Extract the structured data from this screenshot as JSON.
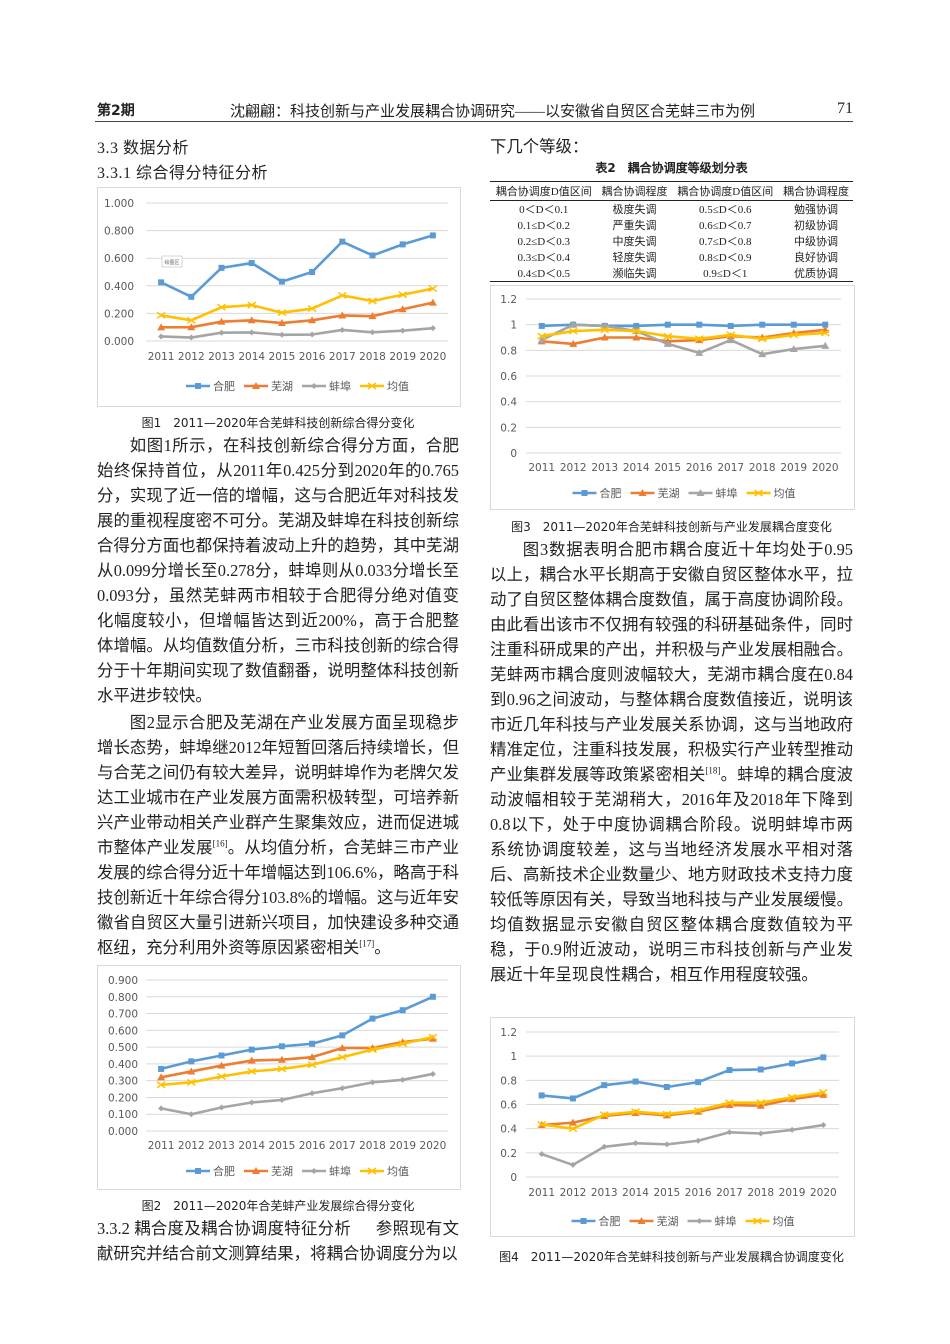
{
  "header": {
    "issue": "第2期",
    "title": "沈翩翩：科技创新与产业发展耦合协调研究——以安徽省自贸区合芜蚌三市为例",
    "page_number": "71"
  },
  "left": {
    "section_33": "3.3 数据分析",
    "section_331": "3.3.1 综合得分特征分析",
    "fig1_caption": "图1　2011—2020年合芜蚌科技创新综合得分变化",
    "para1": "如图1所示，在科技创新综合得分方面，合肥始终保持首位，从2011年0.425分到2020年的0.765分，实现了近一倍的增幅，这与合肥近年对科技发展的重视程度密不可分。芜湖及蚌埠在科技创新综合得分方面也都保持着波动上升的趋势，其中芜湖从0.099分增长至0.278分，蚌埠则从0.033分增长至0.093分，虽然芜蚌两市相较于合肥得分绝对值变化幅度较小，但增幅皆达到近200%，高于合肥整体增幅。从均值数值分析，三市科技创新的综合得分于十年期间实现了数值翻番，说明整体科技创新水平进步较快。",
    "para2": "图2显示合肥及芜湖在产业发展方面呈现稳步增长态势，蚌埠继2012年短暂回落后持续增长，但与合芜之间仍有较大差异，说明蚌埠作为老牌欠发达工业城市在产业发展方面需积极转型，可培养新兴产业带动相关产业群产生聚集效应，进而促进城市整体产业发展",
    "para2_ref1": "[16]",
    "para2_b": "。从均值分析，合芜蚌三市产业发展的综合得分近十年增幅达到106.6%，略高于科技创新近十年综合得分103.8%的增幅。这与近年安徽省自贸区大量引进新兴项目，加快建设多种交通枢纽，充分利用外资等原因紧密相关",
    "para2_ref2": "[17]",
    "para2_end": "。",
    "fig2_caption": "图2　2011—2020年合芜蚌产业发展综合得分变化",
    "section_332": "3.3.2 耦合度及耦合协调度特征分析",
    "para3": "参照现有文献研究并结合前文测算结果，将耦合协调度分为以"
  },
  "right": {
    "para3_cont": "下几个等级：",
    "table2": {
      "title": "表2　耦合协调度等级划分表",
      "headers": [
        "耦合协调度D值区间",
        "耦合协调程度",
        "耦合协调度D值区间",
        "耦合协调程度"
      ],
      "rows": [
        [
          "0＜D＜0.1",
          "极度失调",
          "0.5≤D＜0.6",
          "勉强协调"
        ],
        [
          "0.1≤D＜0.2",
          "严重失调",
          "0.6≤D＜0.7",
          "初级协调"
        ],
        [
          "0.2≤D＜0.3",
          "中度失调",
          "0.7≤D＜0.8",
          "中级协调"
        ],
        [
          "0.3≤D＜0.4",
          "轻度失调",
          "0.8≤D＜0.9",
          "良好协调"
        ],
        [
          "0.4≤D＜0.5",
          "濒临失调",
          "0.9≤D＜1",
          "优质协调"
        ]
      ]
    },
    "fig3_caption": "图3　2011—2020年合芜蚌科技创新与产业发展耦合度变化",
    "para4": "图3数据表明合肥市耦合度近十年均处于0.95以上，耦合水平长期高于安徽自贸区整体水平，拉动了自贸区整体耦合度数值，属于高度协调阶段。由此看出该市不仅拥有较强的科研基础条件，同时注重科研成果的产出，并积极与产业发展相融合。芜蚌两市耦合度则波幅较大，芜湖市耦合度在0.84到0.96之间波动，与整体耦合度数值接近，说明该市近几年科技与产业发展关系协调，这与当地政府精准定位，注重科技发展，积极实行产业转型推动产业集群发展等政策紧密相关",
    "para4_ref": "[18]",
    "para4_b": "。蚌埠的耦合度波动波幅相较于芜湖稍大，2016年及2018年下降到0.8以下，处于中度协调耦合阶段。说明蚌埠市两系统协调度较差，这与当地经济发展水平相对落后、高新技术企业数量少、地方财政技术支持力度较低等原因有关，导致当地科技与产业发展缓慢。均值数据显示安徽自贸区整体耦合度数值较为平稳，于0.9附近波动，说明三市科技创新与产业发展近十年呈现良性耦合，相互作用程度较强。",
    "fig4_caption": "图4　2011—2020年合芜蚌科技创新与产业发展耦合协调度变化"
  },
  "chart_data": [
    {
      "id": "fig1",
      "type": "line",
      "title": "",
      "plot_area_label": "绘图区",
      "categories": [
        "2011",
        "2012",
        "2013",
        "2014",
        "2015",
        "2016",
        "2017",
        "2018",
        "2019",
        "2020"
      ],
      "ylim": [
        0,
        1.0
      ],
      "yticks": [
        "0.000",
        "0.200",
        "0.400",
        "0.600",
        "0.800",
        "1.000"
      ],
      "ystep": 0.2,
      "grid": true,
      "legend": "bottom",
      "series": [
        {
          "name": "合肥",
          "color": "#5b9bd5",
          "marker": "square",
          "values": [
            0.425,
            0.32,
            0.53,
            0.565,
            0.43,
            0.5,
            0.72,
            0.62,
            0.7,
            0.765
          ]
        },
        {
          "name": "芜湖",
          "color": "#ed7d31",
          "marker": "triangle",
          "values": [
            0.099,
            0.1,
            0.14,
            0.15,
            0.13,
            0.15,
            0.185,
            0.18,
            0.23,
            0.278
          ]
        },
        {
          "name": "蚌埠",
          "color": "#a5a5a5",
          "marker": "diamond",
          "values": [
            0.033,
            0.025,
            0.06,
            0.062,
            0.045,
            0.047,
            0.08,
            0.063,
            0.075,
            0.093
          ]
        },
        {
          "name": "均值",
          "color": "#ffc000",
          "marker": "x",
          "values": [
            0.186,
            0.15,
            0.245,
            0.26,
            0.205,
            0.235,
            0.33,
            0.29,
            0.335,
            0.38
          ]
        }
      ]
    },
    {
      "id": "fig2",
      "type": "line",
      "title": "",
      "categories": [
        "2011",
        "2012",
        "2013",
        "2014",
        "2015",
        "2016",
        "2017",
        "2018",
        "2019",
        "2020"
      ],
      "ylim": [
        0,
        0.9
      ],
      "yticks": [
        "0.000",
        "0.100",
        "0.200",
        "0.300",
        "0.400",
        "0.500",
        "0.600",
        "0.700",
        "0.800",
        "0.900"
      ],
      "ystep": 0.1,
      "grid": true,
      "legend": "bottom",
      "series": [
        {
          "name": "合肥",
          "color": "#5b9bd5",
          "marker": "square",
          "values": [
            0.37,
            0.415,
            0.45,
            0.485,
            0.505,
            0.52,
            0.57,
            0.67,
            0.72,
            0.8
          ]
        },
        {
          "name": "芜湖",
          "color": "#ed7d31",
          "marker": "triangle",
          "values": [
            0.32,
            0.355,
            0.39,
            0.42,
            0.425,
            0.44,
            0.495,
            0.495,
            0.53,
            0.55
          ]
        },
        {
          "name": "蚌埠",
          "color": "#a5a5a5",
          "marker": "diamond",
          "values": [
            0.135,
            0.1,
            0.14,
            0.17,
            0.185,
            0.225,
            0.255,
            0.29,
            0.305,
            0.34
          ]
        },
        {
          "name": "均值",
          "color": "#ffc000",
          "marker": "x",
          "values": [
            0.275,
            0.29,
            0.325,
            0.355,
            0.37,
            0.395,
            0.44,
            0.485,
            0.52,
            0.56
          ]
        }
      ]
    },
    {
      "id": "fig3",
      "type": "line",
      "title": "",
      "categories": [
        "2011",
        "2012",
        "2013",
        "2014",
        "2015",
        "2016",
        "2017",
        "2018",
        "2019",
        "2020"
      ],
      "ylim": [
        0,
        1.2
      ],
      "yticks": [
        "0",
        "0.2",
        "0.4",
        "0.6",
        "0.8",
        "1",
        "1.2"
      ],
      "ystep": 0.2,
      "grid": true,
      "legend": "bottom",
      "series": [
        {
          "name": "合肥",
          "color": "#5b9bd5",
          "marker": "square",
          "values": [
            0.99,
            1.0,
            0.99,
            0.99,
            1.0,
            1.0,
            0.99,
            1.0,
            1.0,
            1.0
          ]
        },
        {
          "name": "芜湖",
          "color": "#ed7d31",
          "marker": "triangle",
          "values": [
            0.87,
            0.85,
            0.9,
            0.9,
            0.87,
            0.88,
            0.91,
            0.9,
            0.935,
            0.96
          ]
        },
        {
          "name": "蚌埠",
          "color": "#a5a5a5",
          "marker": "triangle",
          "values": [
            0.88,
            1.0,
            0.99,
            0.95,
            0.85,
            0.78,
            0.88,
            0.77,
            0.81,
            0.835
          ]
        },
        {
          "name": "均值",
          "color": "#ffc000",
          "marker": "x",
          "values": [
            0.91,
            0.95,
            0.96,
            0.95,
            0.91,
            0.89,
            0.92,
            0.89,
            0.92,
            0.935
          ]
        }
      ]
    },
    {
      "id": "fig4",
      "type": "line",
      "title": "",
      "categories": [
        "2011",
        "2012",
        "2013",
        "2014",
        "2015",
        "2016",
        "2017",
        "2018",
        "2019",
        "2020"
      ],
      "ylim": [
        0,
        1.2
      ],
      "yticks": [
        "0",
        "0.2",
        "0.4",
        "0.6",
        "0.8",
        "1",
        "1.2"
      ],
      "ystep": 0.2,
      "grid": true,
      "legend": "bottom",
      "series": [
        {
          "name": "合肥",
          "color": "#5b9bd5",
          "marker": "square",
          "values": [
            0.675,
            0.65,
            0.76,
            0.79,
            0.745,
            0.785,
            0.885,
            0.89,
            0.94,
            0.99
          ]
        },
        {
          "name": "芜湖",
          "color": "#ed7d31",
          "marker": "triangle",
          "values": [
            0.43,
            0.45,
            0.505,
            0.53,
            0.51,
            0.54,
            0.595,
            0.59,
            0.645,
            0.68
          ]
        },
        {
          "name": "蚌埠",
          "color": "#a5a5a5",
          "marker": "diamond",
          "values": [
            0.19,
            0.1,
            0.25,
            0.28,
            0.27,
            0.3,
            0.37,
            0.36,
            0.39,
            0.43
          ]
        },
        {
          "name": "均值",
          "color": "#ffc000",
          "marker": "x",
          "values": [
            0.435,
            0.4,
            0.515,
            0.54,
            0.52,
            0.55,
            0.615,
            0.615,
            0.66,
            0.7
          ]
        }
      ]
    }
  ]
}
